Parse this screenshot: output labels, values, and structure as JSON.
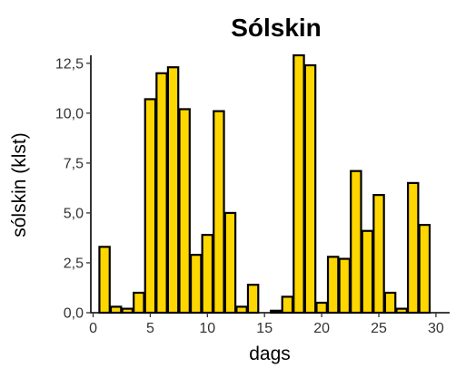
{
  "chart_data": {
    "type": "bar",
    "title": "Sólskin",
    "xlabel": "dags",
    "ylabel": "sólskin (klst)",
    "x": [
      1,
      2,
      3,
      4,
      5,
      6,
      7,
      8,
      9,
      10,
      11,
      12,
      13,
      14,
      15,
      16,
      17,
      18,
      19,
      20,
      21,
      22,
      23,
      24,
      25,
      26,
      27,
      28,
      29
    ],
    "values": [
      3.3,
      0.3,
      0.2,
      1.0,
      10.7,
      12.0,
      12.3,
      10.2,
      2.9,
      3.9,
      10.1,
      5.0,
      0.3,
      1.4,
      0.0,
      0.1,
      0.8,
      12.9,
      12.4,
      0.5,
      2.8,
      2.7,
      7.1,
      4.1,
      5.9,
      1.0,
      0.2,
      6.5,
      4.4
    ],
    "xlim": [
      -0.2,
      31.2
    ],
    "ylim": [
      0,
      12.9
    ],
    "xticks": [
      0,
      5,
      10,
      15,
      20,
      25,
      30
    ],
    "xtick_labels": [
      "0",
      "5",
      "10",
      "15",
      "20",
      "25",
      "30"
    ],
    "yticks": [
      0,
      2.5,
      5,
      7.5,
      10,
      12.5
    ],
    "ytick_labels": [
      "0,0",
      "2,5",
      "5,0",
      "7,5",
      "10,0",
      "12,5"
    ],
    "grid": false,
    "legend": "none",
    "bar_color": "#FFD700",
    "bar_edge_color": "#000000"
  }
}
